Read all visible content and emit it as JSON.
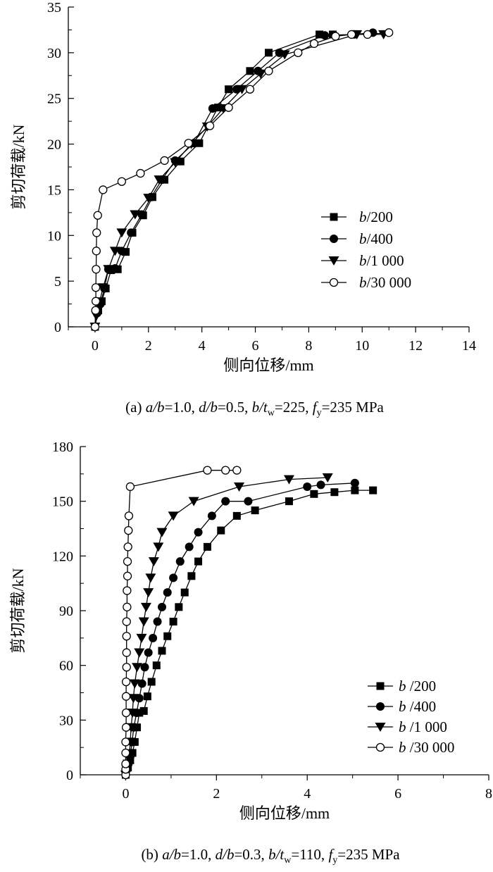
{
  "chart_data": [
    {
      "type": "line",
      "panel": "a",
      "caption": {
        "label": "(a) ",
        "parts": [
          {
            "t": "a/b",
            "i": true
          },
          {
            "t": "=1.0, "
          },
          {
            "t": "d/b",
            "i": true
          },
          {
            "t": "=0.5, "
          },
          {
            "t": "b/t",
            "i": true
          },
          {
            "t": "w",
            "sub": true
          },
          {
            "t": "=225, "
          },
          {
            "t": "f",
            "i": true
          },
          {
            "t": "y",
            "sub": true
          },
          {
            "t": "=235 MPa"
          }
        ]
      },
      "xlabel": "侧向位移/mm",
      "ylabel": "剪切荷载/kN",
      "xlim": [
        -1,
        14
      ],
      "ylim": [
        0,
        35
      ],
      "xticks": [
        0,
        2,
        4,
        6,
        8,
        10,
        12,
        14
      ],
      "yticks": [
        0,
        5,
        10,
        15,
        20,
        25,
        30,
        35
      ],
      "legend_position": "center-right",
      "series": [
        {
          "name": "b/200",
          "marker": "square",
          "x": [
            0,
            0.12,
            0.25,
            0.4,
            0.6,
            0.85,
            1.15,
            1.4,
            1.8,
            2.15,
            2.6,
            3.2,
            3.9,
            4.6,
            5.0,
            5.8,
            6.5,
            8.4,
            8.9
          ],
          "y": [
            0,
            1.8,
            2.8,
            4.2,
            6.2,
            6.3,
            8.2,
            10.3,
            12.2,
            14.2,
            16.1,
            18.1,
            20.1,
            24.0,
            26.0,
            28.0,
            30.0,
            32.0,
            32.0
          ]
        },
        {
          "name": "b/400",
          "marker": "circle",
          "x": [
            0,
            0.08,
            0.2,
            0.35,
            0.5,
            0.75,
            1.0,
            1.35,
            1.75,
            2.1,
            2.5,
            3.0,
            3.7,
            4.4,
            5.3,
            6.1,
            6.9,
            8.6,
            9.7,
            10.4
          ],
          "y": [
            0,
            1.5,
            2.5,
            4.2,
            6.3,
            6.4,
            8.3,
            10.3,
            12.3,
            14.2,
            16.1,
            18.2,
            20.1,
            23.9,
            26.0,
            28.0,
            30.0,
            31.9,
            32.0,
            32.2
          ]
        },
        {
          "name": "b/1 000",
          "marker": "triangle-down",
          "x": [
            0,
            0.05,
            0.15,
            0.3,
            0.5,
            0.75,
            1.0,
            1.5,
            2.0,
            2.4,
            3.0,
            3.6,
            4.2,
            4.8,
            5.5,
            6.2,
            7.1,
            9.8,
            10.8
          ],
          "y": [
            0,
            1.2,
            2.5,
            4.3,
            6.3,
            8.3,
            10.3,
            12.3,
            14.1,
            16.1,
            18.0,
            20.0,
            21.9,
            23.9,
            26.0,
            27.7,
            29.8,
            32.0,
            32.0
          ]
        },
        {
          "name": "b/30 000",
          "marker": "circle-open",
          "x": [
            0,
            0.02,
            0.03,
            0.03,
            0.04,
            0.05,
            0.06,
            0.1,
            0.3,
            1.0,
            1.7,
            2.6,
            3.5,
            4.3,
            5.0,
            5.8,
            6.5,
            7.6,
            8.2,
            9.0,
            9.6,
            10.2,
            11.0
          ],
          "y": [
            0,
            1.8,
            2.8,
            4.3,
            6.3,
            8.3,
            10.3,
            12.2,
            15.0,
            15.9,
            16.8,
            18.2,
            20.1,
            22.0,
            24.0,
            26.0,
            28.0,
            30.0,
            31.0,
            31.8,
            32.0,
            32.0,
            32.2
          ]
        }
      ]
    },
    {
      "type": "line",
      "panel": "b",
      "caption": {
        "label": "(b) ",
        "parts": [
          {
            "t": "a/b",
            "i": true
          },
          {
            "t": "=1.0, "
          },
          {
            "t": "d/b",
            "i": true
          },
          {
            "t": "=0.3, "
          },
          {
            "t": "b/t",
            "i": true
          },
          {
            "t": "w",
            "sub": true
          },
          {
            "t": "=110, "
          },
          {
            "t": "f",
            "i": true
          },
          {
            "t": "y",
            "sub": true
          },
          {
            "t": "=235 MPa"
          }
        ]
      },
      "xlabel": "侧向位移/mm",
      "ylabel": "剪切荷载/kN",
      "xlim": [
        -1,
        8
      ],
      "ylim": [
        0,
        180
      ],
      "xticks": [
        0,
        2,
        4,
        6,
        8
      ],
      "yticks": [
        0,
        30,
        60,
        90,
        120,
        150,
        180
      ],
      "legend_position": "bottom-right",
      "series": [
        {
          "name": "b /200",
          "marker": "square",
          "x": [
            0,
            0.05,
            0.1,
            0.15,
            0.2,
            0.25,
            0.3,
            0.4,
            0.48,
            0.57,
            0.68,
            0.8,
            0.92,
            1.05,
            1.17,
            1.3,
            1.45,
            1.6,
            1.8,
            2.1,
            2.45,
            2.85,
            3.6,
            4.15,
            4.6,
            5.05,
            5.45
          ],
          "y": [
            0,
            4,
            8,
            12,
            18,
            26,
            34,
            35,
            43,
            51,
            60,
            68,
            76,
            84,
            92,
            100,
            109,
            117,
            125,
            134,
            142,
            145,
            150,
            154,
            155,
            156,
            156
          ]
        },
        {
          "name": "b /400",
          "marker": "circle",
          "x": [
            0,
            0.03,
            0.06,
            0.1,
            0.14,
            0.18,
            0.24,
            0.3,
            0.36,
            0.42,
            0.5,
            0.6,
            0.7,
            0.8,
            0.92,
            1.05,
            1.2,
            1.4,
            1.6,
            1.9,
            2.2,
            2.7,
            4.0,
            4.3,
            5.05
          ],
          "y": [
            0,
            3,
            6,
            10,
            18,
            26,
            34,
            42,
            50,
            59,
            67,
            75,
            84,
            92,
            100,
            108,
            117,
            125,
            133,
            142,
            150,
            150,
            158,
            159,
            160
          ]
        },
        {
          "name": "b /1 000",
          "marker": "triangle-down",
          "x": [
            0,
            0.02,
            0.05,
            0.08,
            0.1,
            0.12,
            0.15,
            0.17,
            0.2,
            0.25,
            0.3,
            0.35,
            0.4,
            0.45,
            0.5,
            0.55,
            0.62,
            0.72,
            0.8,
            1.05,
            1.5,
            2.5,
            3.6,
            4.45
          ],
          "y": [
            0,
            3,
            6,
            10,
            18,
            26,
            34,
            42,
            50,
            59,
            67,
            75,
            84,
            92,
            100,
            108,
            117,
            125,
            133,
            142,
            150,
            158,
            162,
            163
          ]
        },
        {
          "name": "b /30 000",
          "marker": "circle-open",
          "x": [
            0,
            0.0,
            0.0,
            0.0,
            0.0,
            0.01,
            0.01,
            0.01,
            0.01,
            0.02,
            0.02,
            0.02,
            0.02,
            0.03,
            0.03,
            0.04,
            0.04,
            0.05,
            0.06,
            0.07,
            0.1,
            1.8,
            2.2,
            2.45
          ],
          "y": [
            0,
            3,
            6,
            12,
            18,
            26,
            34,
            43,
            51,
            59,
            67,
            76,
            84,
            92,
            101,
            109,
            117,
            125,
            134,
            142,
            158,
            167,
            167,
            167
          ]
        }
      ]
    }
  ]
}
